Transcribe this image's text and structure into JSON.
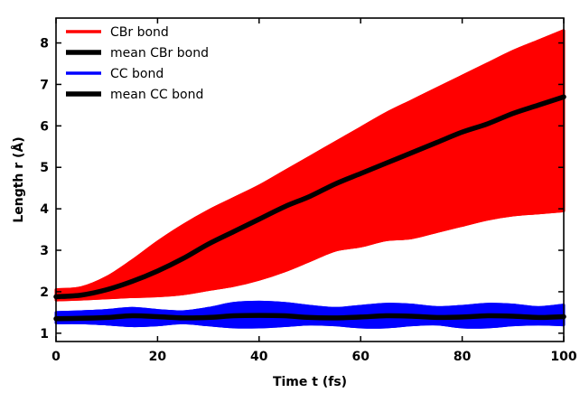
{
  "chart_data": {
    "type": "line",
    "title": "",
    "xlabel": "Time t (fs)",
    "ylabel": "Length r (Å)",
    "xlim": [
      0,
      100
    ],
    "ylim": [
      0.8,
      8.6
    ],
    "xticks": [
      0,
      20,
      40,
      60,
      80,
      100
    ],
    "yticks": [
      1,
      2,
      3,
      4,
      5,
      6,
      7,
      8
    ],
    "grid": false,
    "legend_position": "top-left",
    "colors": {
      "cbr": "#ff0000",
      "mean": "#000000",
      "cc": "#0000ff"
    },
    "legend": [
      {
        "label": "CBr bond",
        "color": "#ff0000"
      },
      {
        "label": "mean CBr bond",
        "color": "#000000"
      },
      {
        "label": "CC bond",
        "color": "#0000ff"
      },
      {
        "label": "mean CC bond",
        "color": "#000000"
      }
    ],
    "x": [
      0,
      5,
      10,
      15,
      20,
      25,
      30,
      35,
      40,
      45,
      50,
      55,
      60,
      65,
      70,
      75,
      80,
      85,
      90,
      95,
      100
    ],
    "series": [
      {
        "name": "CBr bond",
        "role": "band",
        "upper": [
          2.05,
          2.1,
          2.35,
          2.75,
          3.2,
          3.6,
          3.95,
          4.25,
          4.55,
          4.9,
          5.25,
          5.6,
          5.95,
          6.3,
          6.6,
          6.9,
          7.2,
          7.5,
          7.8,
          8.05,
          8.3
        ],
        "lower": [
          1.8,
          1.82,
          1.85,
          1.88,
          1.9,
          1.95,
          2.05,
          2.15,
          2.3,
          2.5,
          2.75,
          3.0,
          3.1,
          3.25,
          3.3,
          3.45,
          3.6,
          3.75,
          3.85,
          3.9,
          3.95
        ]
      },
      {
        "name": "mean CBr bond",
        "role": "mean",
        "values": [
          1.88,
          1.92,
          2.05,
          2.25,
          2.5,
          2.8,
          3.15,
          3.45,
          3.75,
          4.05,
          4.3,
          4.6,
          4.85,
          5.1,
          5.35,
          5.6,
          5.85,
          6.05,
          6.3,
          6.5,
          6.7
        ]
      },
      {
        "name": "CC bond",
        "role": "band",
        "upper": [
          1.5,
          1.52,
          1.55,
          1.6,
          1.55,
          1.52,
          1.6,
          1.72,
          1.75,
          1.72,
          1.65,
          1.6,
          1.65,
          1.7,
          1.68,
          1.62,
          1.65,
          1.7,
          1.68,
          1.62,
          1.68
        ],
        "lower": [
          1.25,
          1.25,
          1.22,
          1.18,
          1.2,
          1.25,
          1.2,
          1.15,
          1.15,
          1.18,
          1.22,
          1.2,
          1.15,
          1.15,
          1.2,
          1.22,
          1.15,
          1.15,
          1.2,
          1.22,
          1.2
        ]
      },
      {
        "name": "mean CC bond",
        "role": "mean",
        "values": [
          1.35,
          1.36,
          1.38,
          1.42,
          1.4,
          1.37,
          1.38,
          1.42,
          1.43,
          1.42,
          1.38,
          1.37,
          1.39,
          1.42,
          1.41,
          1.38,
          1.39,
          1.42,
          1.41,
          1.38,
          1.4
        ]
      }
    ]
  }
}
